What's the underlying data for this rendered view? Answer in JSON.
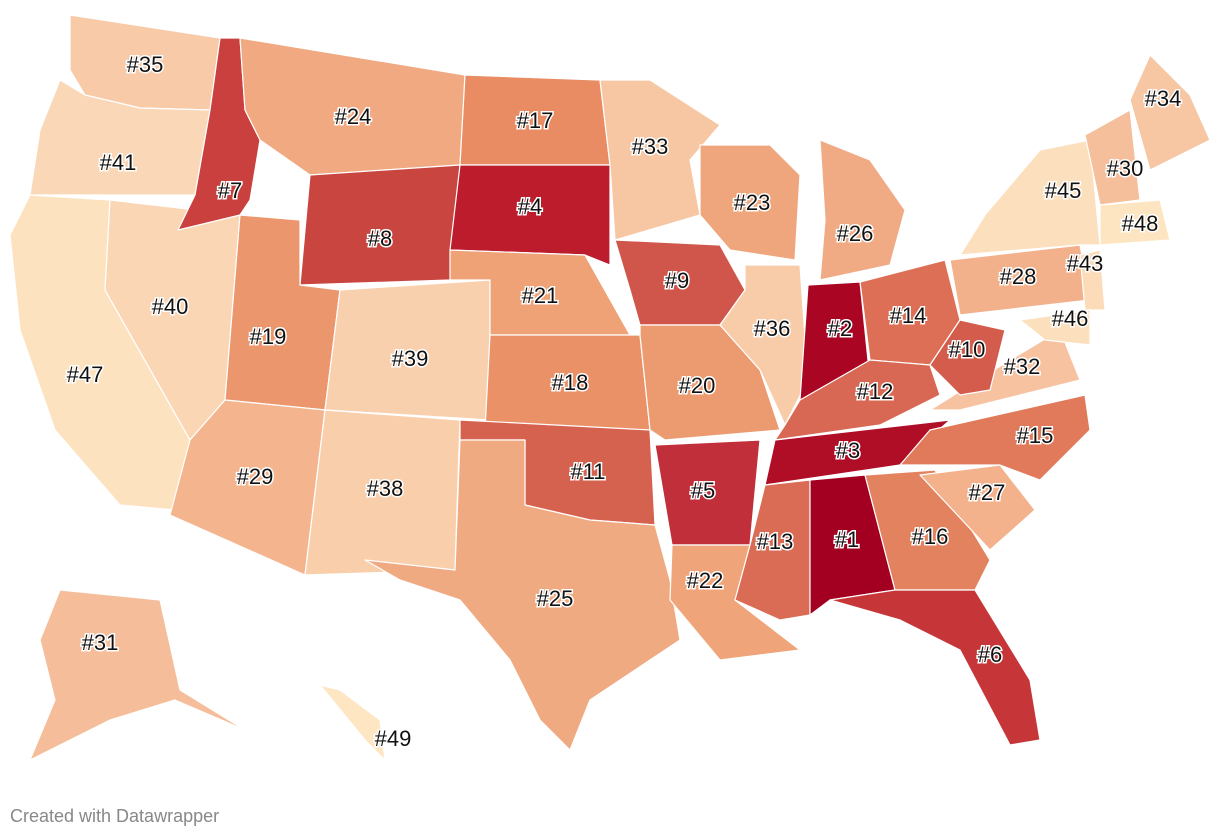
{
  "map": {
    "states": [
      {
        "label": "#35",
        "color": "#f8caa8"
      },
      {
        "label": "#41",
        "color": "#fad7b6"
      },
      {
        "label": "#47",
        "color": "#fde2bf"
      },
      {
        "label": "#40",
        "color": "#fad6b5"
      },
      {
        "label": "#7",
        "color": "#c9403f"
      },
      {
        "label": "#24",
        "color": "#f0a980"
      },
      {
        "label": "#8",
        "color": "#c94540"
      },
      {
        "label": "#19",
        "color": "#eb966c"
      },
      {
        "label": "#29",
        "color": "#f3b48e"
      },
      {
        "label": "#39",
        "color": "#f9d0ae"
      },
      {
        "label": "#38",
        "color": "#f9cfab"
      },
      {
        "label": "#17",
        "color": "#e98c63"
      },
      {
        "label": "#4",
        "color": "#bc1c2c"
      },
      {
        "label": "#21",
        "color": "#eea276"
      },
      {
        "label": "#18",
        "color": "#ea9168"
      },
      {
        "label": "#11",
        "color": "#d5624e"
      },
      {
        "label": "#25",
        "color": "#f0aa82"
      },
      {
        "label": "#33",
        "color": "#f7c7a3"
      },
      {
        "label": "#9",
        "color": "#d0554a"
      },
      {
        "label": "#20",
        "color": "#ec9b70"
      },
      {
        "label": "#5",
        "color": "#c02f3a"
      },
      {
        "label": "#22",
        "color": "#efa479"
      },
      {
        "label": "#23",
        "color": "#efa67c"
      },
      {
        "label": "#36",
        "color": "#f8cca9"
      },
      {
        "label": "#26",
        "color": "#f0ab84"
      },
      {
        "label": "#2",
        "color": "#aa0624"
      },
      {
        "label": "#14",
        "color": "#dc6f55"
      },
      {
        "label": "#12",
        "color": "#d86853"
      },
      {
        "label": "#3",
        "color": "#b00d27"
      },
      {
        "label": "#13",
        "color": "#da6b54"
      },
      {
        "label": "#1",
        "color": "#a30021"
      },
      {
        "label": "#16",
        "color": "#e3825e"
      },
      {
        "label": "#6",
        "color": "#c63638"
      },
      {
        "label": "#27",
        "color": "#f3b28c"
      },
      {
        "label": "#15",
        "color": "#e07a5b"
      },
      {
        "label": "#32",
        "color": "#f6c29f"
      },
      {
        "label": "#10",
        "color": "#d45c4c"
      },
      {
        "label": "#28",
        "color": "#f3b18b"
      },
      {
        "label": "#45",
        "color": "#fcdfbd"
      },
      {
        "label": "#30",
        "color": "#f5bf9b"
      },
      {
        "label": "#34",
        "color": "#f7c6a3"
      },
      {
        "label": "#48",
        "color": "#fee5c2"
      },
      {
        "label": "#43",
        "color": "#fcdbb9"
      },
      {
        "label": "#46",
        "color": "#fcdfbc"
      },
      {
        "label": "#31",
        "color": "#f5bd99"
      },
      {
        "label": "#49",
        "color": "#fee6c3"
      }
    ],
    "credit": "Created with Datawrapper"
  }
}
